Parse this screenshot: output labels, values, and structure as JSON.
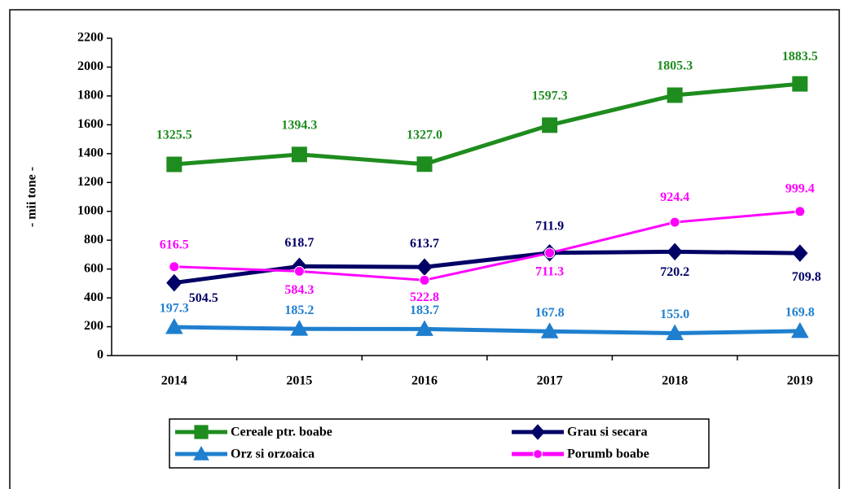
{
  "chart_data": {
    "type": "line",
    "y_label": "- mii tone -",
    "categories": [
      "2014",
      "2015",
      "2016",
      "2017",
      "2018",
      "2019"
    ],
    "ylim": [
      0,
      2200
    ],
    "yticks": [
      0,
      200,
      400,
      600,
      800,
      1000,
      1200,
      1400,
      1600,
      1800,
      2000,
      2200
    ],
    "series": [
      {
        "name": "Cereale ptr. boabe",
        "color": "#1e8c1e",
        "marker": "square",
        "values": [
          1325.5,
          1394.3,
          1327,
          1597.3,
          1805.3,
          1883.5
        ],
        "value_labels": [
          "1325.5",
          "1394.3",
          "1327.0",
          "1597.3",
          "1805.3",
          "1883.5"
        ]
      },
      {
        "name": "Grau si secara",
        "color": "#000066",
        "marker": "diamond",
        "values": [
          504.5,
          618.7,
          613.7,
          711.9,
          720.2,
          709.8
        ],
        "value_labels": [
          "504.5",
          "618.7",
          "613.7",
          "711.9",
          "720.2",
          "709.8"
        ]
      },
      {
        "name": "Orz si orzoaica",
        "color": "#1f7fcf",
        "marker": "triangle",
        "values": [
          197.3,
          185.2,
          183.7,
          167.8,
          155,
          169.8
        ],
        "value_labels": [
          "197.3",
          "185.2",
          "183.7",
          "167.8",
          "155.0",
          "169.8"
        ]
      },
      {
        "name": "Porumb boabe",
        "color": "#ff00ff",
        "marker": "circle",
        "values": [
          616.5,
          584.3,
          522.8,
          711.3,
          924.4,
          999.4
        ],
        "value_labels": [
          "616.5",
          "584.3",
          "522.8",
          "711.3",
          "924.4",
          "999.4"
        ]
      }
    ]
  }
}
